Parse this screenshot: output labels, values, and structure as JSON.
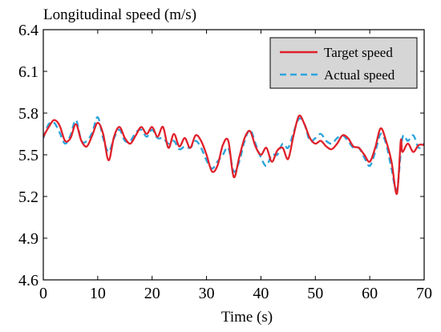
{
  "chart_data": {
    "type": "line",
    "title": "",
    "ylabel": "Longitudinal speed (m/s)",
    "xlabel": "Time (s)",
    "xlim": [
      0,
      70
    ],
    "ylim": [
      4.6,
      6.4
    ],
    "xticks": [
      "0",
      "10",
      "20",
      "30",
      "40",
      "50",
      "60",
      "70"
    ],
    "yticks": [
      "4.6",
      "4.9",
      "5.2",
      "5.5",
      "5.8",
      "6.1",
      "6.4"
    ],
    "grid": false,
    "legend_position": "top-right",
    "series": [
      {
        "name": "Target speed",
        "color": "#e0202a",
        "style": "solid",
        "x": [
          0,
          1,
          2,
          3,
          4,
          5,
          6,
          7,
          8,
          9,
          10,
          11,
          12,
          13,
          14,
          15,
          16,
          17,
          18,
          19,
          20,
          21,
          22,
          23,
          24,
          25,
          26,
          27,
          28,
          29,
          30,
          31,
          32,
          33,
          34,
          35,
          36,
          37,
          38,
          39,
          40,
          41,
          42,
          43,
          44,
          45,
          46,
          47,
          48,
          49,
          50,
          51,
          52,
          53,
          54,
          55,
          56,
          57,
          58,
          59,
          60,
          61,
          62,
          63,
          64,
          65,
          65.7,
          66,
          67,
          68,
          69,
          70
        ],
        "y": [
          5.63,
          5.7,
          5.75,
          5.71,
          5.6,
          5.62,
          5.72,
          5.6,
          5.56,
          5.64,
          5.73,
          5.65,
          5.46,
          5.63,
          5.7,
          5.62,
          5.58,
          5.64,
          5.7,
          5.65,
          5.7,
          5.63,
          5.7,
          5.55,
          5.65,
          5.56,
          5.62,
          5.55,
          5.64,
          5.6,
          5.5,
          5.38,
          5.42,
          5.57,
          5.6,
          5.34,
          5.48,
          5.62,
          5.67,
          5.56,
          5.5,
          5.55,
          5.45,
          5.53,
          5.55,
          5.47,
          5.64,
          5.78,
          5.72,
          5.62,
          5.58,
          5.6,
          5.56,
          5.54,
          5.58,
          5.64,
          5.62,
          5.56,
          5.55,
          5.5,
          5.45,
          5.55,
          5.69,
          5.6,
          5.45,
          5.22,
          5.6,
          5.52,
          5.58,
          5.52,
          5.57,
          5.57
        ]
      },
      {
        "name": "Actual speed",
        "color": "#2ea4dc",
        "style": "dashed",
        "x": [
          0,
          1,
          2,
          3,
          4,
          5,
          6,
          7,
          8,
          9,
          10,
          11,
          12,
          13,
          14,
          15,
          16,
          17,
          18,
          19,
          20,
          21,
          22,
          23,
          24,
          25,
          26,
          27,
          28,
          29,
          30,
          31,
          32,
          33,
          34,
          35,
          36,
          37,
          38,
          39,
          40,
          41,
          42,
          43,
          44,
          45,
          46,
          47,
          48,
          49,
          50,
          51,
          52,
          53,
          54,
          55,
          56,
          57,
          58,
          59,
          60,
          61,
          62,
          63,
          64,
          65,
          66,
          67,
          68,
          69,
          70
        ],
        "y": [
          5.62,
          5.72,
          5.73,
          5.66,
          5.58,
          5.64,
          5.75,
          5.6,
          5.6,
          5.66,
          5.77,
          5.62,
          5.52,
          5.62,
          5.68,
          5.6,
          5.6,
          5.66,
          5.68,
          5.63,
          5.68,
          5.62,
          5.62,
          5.58,
          5.6,
          5.54,
          5.56,
          5.55,
          5.6,
          5.55,
          5.46,
          5.4,
          5.45,
          5.5,
          5.55,
          5.38,
          5.45,
          5.6,
          5.68,
          5.58,
          5.48,
          5.42,
          5.5,
          5.5,
          5.58,
          5.55,
          5.66,
          5.76,
          5.72,
          5.6,
          5.62,
          5.65,
          5.6,
          5.58,
          5.62,
          5.64,
          5.6,
          5.55,
          5.55,
          5.48,
          5.42,
          5.52,
          5.65,
          5.58,
          5.4,
          5.25,
          5.62,
          5.6,
          5.64,
          5.55,
          5.58
        ]
      }
    ]
  }
}
